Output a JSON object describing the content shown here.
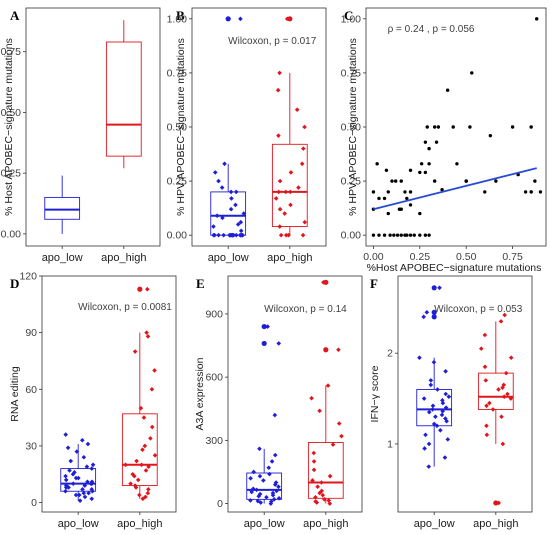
{
  "colors": {
    "apo_low": "#1f1fd6",
    "apo_high": "#e0161e",
    "fit_line": "#2a4bd7",
    "scatter_points": "#000000"
  },
  "chart_data": [
    {
      "panel": "A",
      "type": "box",
      "categories": [
        "apo_low",
        "apo_high"
      ],
      "ylabel": "% Host APOBEC−signature mutations",
      "ylim": [
        -0.05,
        0.93
      ],
      "yticks": [
        "0.00",
        "0.25",
        "0.50",
        "0.75"
      ],
      "yticks_values": [
        0,
        0.25,
        0.5,
        0.75
      ],
      "boxes": [
        {
          "name": "apo_low",
          "min": 0.0,
          "q1": 0.06,
          "median": 0.1,
          "q3": 0.15,
          "max": 0.24
        },
        {
          "name": "apo_high",
          "min": 0.27,
          "q1": 0.32,
          "median": 0.45,
          "q3": 0.79,
          "max": 0.88
        }
      ],
      "points": [
        [],
        []
      ],
      "annotation": ""
    },
    {
      "panel": "B",
      "type": "box",
      "categories": [
        "apo_low",
        "apo_high"
      ],
      "ylabel": "% HPV APOBEC−signature mutations",
      "ylim": [
        -0.05,
        1.05
      ],
      "yticks": [
        "0.00",
        "0.25",
        "0.50",
        "0.75",
        "1.00"
      ],
      "yticks_values": [
        0,
        0.25,
        0.5,
        0.75,
        1.0
      ],
      "boxes": [
        {
          "name": "apo_low",
          "min": 0.0,
          "q1": 0.0,
          "median": 0.09,
          "q3": 0.2,
          "max": 0.33
        },
        {
          "name": "apo_high",
          "min": 0.0,
          "q1": 0.04,
          "median": 0.2,
          "q3": 0.42,
          "max": 0.75
        }
      ],
      "points": [
        [
          0,
          0,
          0,
          0,
          0,
          0,
          0,
          0,
          0,
          0,
          0,
          0,
          0,
          0,
          0,
          0,
          0.02,
          0.04,
          0.05,
          0.06,
          0.08,
          0.09,
          0.1,
          0.12,
          0.14,
          0.17,
          0.2,
          0.2,
          0.22,
          0.25,
          0.29,
          0.33,
          1.0
        ],
        [
          0,
          0,
          0,
          0,
          0.04,
          0.06,
          0.1,
          0.12,
          0.14,
          0.17,
          0.2,
          0.2,
          0.2,
          0.22,
          0.25,
          0.29,
          0.33,
          0.4,
          0.46,
          0.5,
          0.58,
          0.67,
          0.75,
          1.0
        ]
      ],
      "outliers": [
        [
          1.0
        ],
        [
          1.0
        ]
      ],
      "annotation": "Wilcoxon, p = 0.017"
    },
    {
      "panel": "C",
      "type": "scatter",
      "xlabel": "%Host APOBEC−signature mutations",
      "ylabel": "% HPV APOBEC−signature mutations",
      "xlim": [
        -0.04,
        0.93
      ],
      "ylim": [
        -0.05,
        1.05
      ],
      "xticks": [
        "0.00",
        "0.25",
        "0.50",
        "0.75"
      ],
      "xticks_values": [
        0,
        0.25,
        0.5,
        0.75
      ],
      "yticks": [
        "0.00",
        "0.25",
        "0.50",
        "0.75",
        "1.00"
      ],
      "yticks_values": [
        0,
        0.25,
        0.5,
        0.75,
        1.0
      ],
      "annotation": "ρ = 0.24 , p = 0.056",
      "fit": {
        "x": [
          0.0,
          0.88
        ],
        "y": [
          0.12,
          0.31
        ]
      },
      "x": [
        0.0,
        0.03,
        0.06,
        0.09,
        0.11,
        0.13,
        0.15,
        0.17,
        0.18,
        0.2,
        0.22,
        0.25,
        0.28,
        0.3,
        0.02,
        0.07,
        0.12,
        0.2,
        0.33,
        0.4,
        0.5,
        0.6,
        0.85,
        0.9,
        0.0,
        0.03,
        0.08,
        0.1,
        0.15,
        0.17,
        0.2,
        0.26,
        0.3,
        0.34,
        0.52,
        0.66,
        0.78,
        0.82,
        0.85,
        0.0,
        0.06,
        0.08,
        0.14,
        0.18,
        0.2,
        0.25,
        0.28,
        0.3,
        0.33,
        0.35,
        0.37,
        0.43,
        0.5,
        0.63,
        0.75,
        0.85,
        0.87,
        0.15,
        0.25,
        0.28,
        0.29,
        0.45,
        0.53,
        0.88
      ],
      "y": [
        0,
        0,
        0,
        0,
        0,
        0,
        0,
        0,
        0,
        0,
        0,
        0,
        0,
        0,
        0.33,
        0.3,
        0.25,
        0.2,
        0.25,
        0.67,
        0.25,
        0.2,
        0.2,
        0.2,
        0.2,
        0.17,
        0.2,
        0.25,
        0.25,
        0.2,
        0.3,
        0.33,
        0.4,
        0.43,
        0.5,
        0.25,
        0.28,
        0.2,
        0.2,
        0.12,
        0.17,
        0.1,
        0.12,
        0.17,
        0.14,
        0.29,
        0.29,
        0.33,
        0.5,
        0.5,
        0.21,
        0.5,
        0.25,
        0.46,
        0.5,
        0.5,
        0.25,
        0.12,
        0.1,
        0.43,
        0.5,
        0.33,
        0.75,
        1.0
      ]
    },
    {
      "panel": "D",
      "type": "box",
      "categories": [
        "apo_low",
        "apo_high"
      ],
      "ylabel": "RNA editing",
      "ylim": [
        -5,
        120
      ],
      "yticks": [
        "0",
        "30",
        "60",
        "90",
        "120"
      ],
      "yticks_values": [
        0,
        30,
        60,
        90,
        120
      ],
      "boxes": [
        {
          "name": "apo_low",
          "min": 1,
          "q1": 6,
          "median": 10,
          "q3": 18,
          "max": 31
        },
        {
          "name": "apo_high",
          "min": 2,
          "q1": 9,
          "median": 20,
          "q3": 47,
          "max": 90
        }
      ],
      "points": [
        [
          1,
          2,
          3,
          4,
          4,
          5,
          5,
          6,
          6,
          7,
          7,
          8,
          8,
          9,
          9,
          10,
          10,
          10,
          11,
          11,
          12,
          13,
          13,
          14,
          15,
          16,
          17,
          18,
          19,
          20,
          22,
          24,
          27,
          29,
          31,
          33,
          36
        ],
        [
          2,
          3,
          4,
          5,
          7,
          8,
          9,
          10,
          12,
          14,
          15,
          17,
          19,
          20,
          20,
          22,
          25,
          28,
          30,
          34,
          40,
          45,
          50,
          60,
          70,
          80,
          88,
          90,
          113
        ]
      ],
      "outliers": [
        [],
        [
          113
        ]
      ],
      "annotation": "Wilcoxon, p = 0.0081"
    },
    {
      "panel": "E",
      "type": "box",
      "categories": [
        "apo_low",
        "apo_high"
      ],
      "ylabel": "A3A expression",
      "ylim": [
        -40,
        1080
      ],
      "yticks": [
        "0",
        "300",
        "600",
        "900"
      ],
      "yticks_values": [
        0,
        300,
        600,
        900
      ],
      "boxes": [
        {
          "name": "apo_low",
          "min": 0,
          "q1": 20,
          "median": 65,
          "q3": 145,
          "max": 260
        },
        {
          "name": "apo_high",
          "min": 0,
          "q1": 25,
          "median": 100,
          "q3": 290,
          "max": 560
        }
      ],
      "points": [
        [
          0,
          5,
          10,
          12,
          15,
          20,
          25,
          30,
          35,
          40,
          45,
          50,
          55,
          60,
          65,
          70,
          80,
          90,
          100,
          110,
          120,
          130,
          140,
          150,
          170,
          200,
          230,
          260,
          420,
          760,
          840
        ],
        [
          0,
          5,
          10,
          15,
          20,
          30,
          40,
          50,
          60,
          80,
          100,
          110,
          130,
          160,
          200,
          240,
          280,
          320,
          380,
          440,
          500,
          560,
          730,
          1050
        ]
      ],
      "outliers": [
        [
          760,
          840
        ],
        [
          730,
          1050
        ]
      ],
      "annotation": "Wilcoxon, p = 0.14"
    },
    {
      "panel": "F",
      "type": "box",
      "categories": [
        "apo_low",
        "apo_high"
      ],
      "ylabel": "IFN−γ score",
      "ylim": [
        0.25,
        2.85
      ],
      "yticks": [
        "1",
        "2"
      ],
      "yticks_values": [
        1,
        2
      ],
      "boxes": [
        {
          "name": "apo_low",
          "min": 0.75,
          "q1": 1.2,
          "median": 1.38,
          "q3": 1.6,
          "max": 1.95
        },
        {
          "name": "apo_high",
          "min": 1.0,
          "q1": 1.38,
          "median": 1.52,
          "q3": 1.78,
          "max": 2.35
        }
      ],
      "points": [
        [
          0.75,
          0.85,
          0.95,
          1.0,
          1.05,
          1.1,
          1.15,
          1.2,
          1.22,
          1.25,
          1.28,
          1.3,
          1.32,
          1.35,
          1.36,
          1.38,
          1.4,
          1.42,
          1.45,
          1.48,
          1.5,
          1.52,
          1.55,
          1.6,
          1.65,
          1.7,
          1.8,
          1.9,
          1.95,
          2.4,
          2.45,
          2.72
        ],
        [
          0.35,
          1.0,
          1.1,
          1.2,
          1.3,
          1.38,
          1.42,
          1.45,
          1.5,
          1.52,
          1.55,
          1.6,
          1.62,
          1.65,
          1.7,
          1.78,
          1.85,
          1.95,
          2.05,
          2.2,
          2.35,
          2.42
        ]
      ],
      "outliers": [
        [
          2.4,
          2.45,
          2.72
        ],
        [
          0.35
        ]
      ],
      "annotation": "Wilcoxon, p = 0.053"
    }
  ]
}
